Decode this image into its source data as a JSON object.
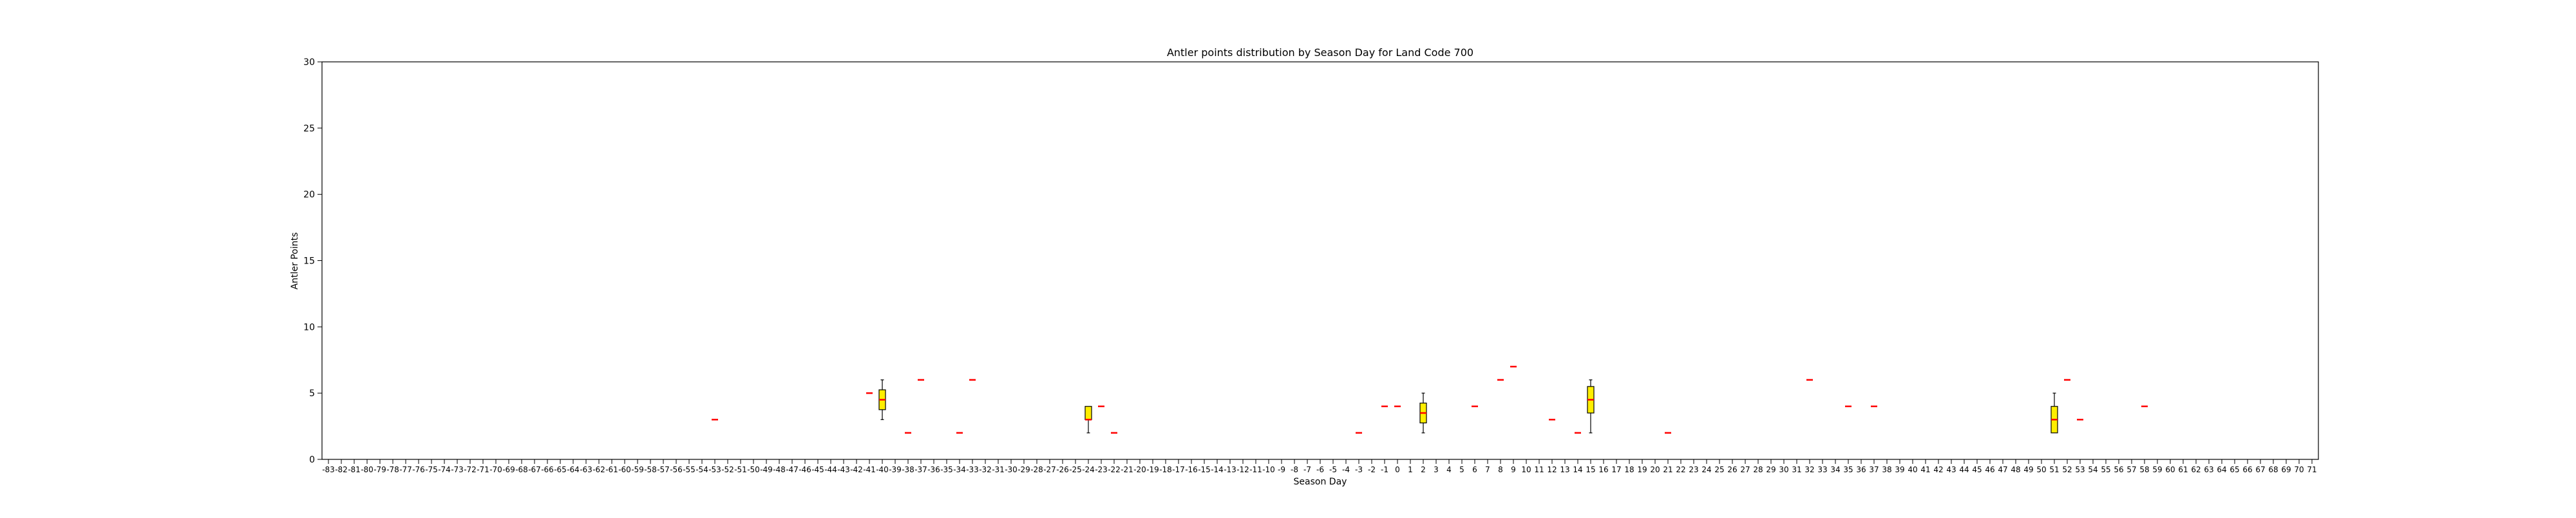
{
  "chart_data": {
    "type": "box",
    "title": "Antler points distribution by Season Day for Land Code 700",
    "xlabel": "Season Day",
    "ylabel": "Antler Points",
    "ylim": [
      0,
      30
    ],
    "yticks": [
      0,
      5,
      10,
      15,
      20,
      25,
      30
    ],
    "categories": [
      "-83",
      "-82",
      "-81",
      "-80",
      "-79",
      "-78",
      "-77",
      "-76",
      "-75",
      "-74",
      "-73",
      "-72",
      "-71",
      "-70",
      "-69",
      "-68",
      "-67",
      "-66",
      "-65",
      "-64",
      "-63",
      "-62",
      "-61",
      "-60",
      "-59",
      "-58",
      "-57",
      "-56",
      "-55",
      "-54",
      "-53",
      "-52",
      "-51",
      "-50",
      "-49",
      "-48",
      "-47",
      "-46",
      "-45",
      "-44",
      "-43",
      "-42",
      "-41",
      "-40",
      "-39",
      "-38",
      "-37",
      "-36",
      "-35",
      "-34",
      "-33",
      "-32",
      "-31",
      "-30",
      "-29",
      "-28",
      "-27",
      "-26",
      "-25",
      "-24",
      "-23",
      "-22",
      "-21",
      "-20",
      "-19",
      "-18",
      "-17",
      "-16",
      "-15",
      "-14",
      "-13",
      "-12",
      "-11",
      "-10",
      "-9",
      "-8",
      "-7",
      "-6",
      "-5",
      "-4",
      "-3",
      "-2",
      "-1",
      "0",
      "1",
      "2",
      "3",
      "4",
      "5",
      "6",
      "7",
      "8",
      "9",
      "10",
      "11",
      "12",
      "13",
      "14",
      "15",
      "16",
      "17",
      "18",
      "19",
      "20",
      "21",
      "22",
      "23",
      "24",
      "25",
      "26",
      "27",
      "28",
      "29",
      "30",
      "31",
      "32",
      "33",
      "34",
      "35",
      "36",
      "37",
      "38",
      "39",
      "40",
      "41",
      "42",
      "43",
      "44",
      "45",
      "46",
      "47",
      "48",
      "49",
      "50",
      "51",
      "52",
      "53",
      "54",
      "55",
      "56",
      "57",
      "58",
      "59",
      "60",
      "61",
      "62",
      "63",
      "64",
      "65",
      "66",
      "67",
      "68",
      "69",
      "70",
      "71"
    ],
    "boxes": [
      {
        "day": "-53",
        "min": 3,
        "q1": 3,
        "median": 3,
        "q3": 3,
        "max": 3
      },
      {
        "day": "-41",
        "min": 5,
        "q1": 5,
        "median": 5,
        "q3": 5,
        "max": 5
      },
      {
        "day": "-40",
        "min": 3,
        "q1": 3.75,
        "median": 4.5,
        "q3": 5.25,
        "max": 6
      },
      {
        "day": "-38",
        "min": 2,
        "q1": 2,
        "median": 2,
        "q3": 2,
        "max": 2
      },
      {
        "day": "-37",
        "min": 6,
        "q1": 6,
        "median": 6,
        "q3": 6,
        "max": 6
      },
      {
        "day": "-34",
        "min": 2,
        "q1": 2,
        "median": 2,
        "q3": 2,
        "max": 2
      },
      {
        "day": "-33",
        "min": 6,
        "q1": 6,
        "median": 6,
        "q3": 6,
        "max": 6
      },
      {
        "day": "-24",
        "min": 2,
        "q1": 3,
        "median": 3,
        "q3": 4,
        "max": 4
      },
      {
        "day": "-23",
        "min": 4,
        "q1": 4,
        "median": 4,
        "q3": 4,
        "max": 4
      },
      {
        "day": "-22",
        "min": 2,
        "q1": 2,
        "median": 2,
        "q3": 2,
        "max": 2
      },
      {
        "day": "-3",
        "min": 2,
        "q1": 2,
        "median": 2,
        "q3": 2,
        "max": 2
      },
      {
        "day": "-1",
        "min": 4,
        "q1": 4,
        "median": 4,
        "q3": 4,
        "max": 4
      },
      {
        "day": "0",
        "min": 4,
        "q1": 4,
        "median": 4,
        "q3": 4,
        "max": 4
      },
      {
        "day": "2",
        "min": 2,
        "q1": 2.75,
        "median": 3.5,
        "q3": 4.25,
        "max": 5
      },
      {
        "day": "6",
        "min": 4,
        "q1": 4,
        "median": 4,
        "q3": 4,
        "max": 4
      },
      {
        "day": "8",
        "min": 6,
        "q1": 6,
        "median": 6,
        "q3": 6,
        "max": 6
      },
      {
        "day": "9",
        "min": 7,
        "q1": 7,
        "median": 7,
        "q3": 7,
        "max": 7
      },
      {
        "day": "12",
        "min": 3,
        "q1": 3,
        "median": 3,
        "q3": 3,
        "max": 3
      },
      {
        "day": "14",
        "min": 2,
        "q1": 2,
        "median": 2,
        "q3": 2,
        "max": 2
      },
      {
        "day": "15",
        "min": 2,
        "q1": 3.5,
        "median": 4.5,
        "q3": 5.5,
        "max": 6
      },
      {
        "day": "21",
        "min": 2,
        "q1": 2,
        "median": 2,
        "q3": 2,
        "max": 2
      },
      {
        "day": "32",
        "min": 6,
        "q1": 6,
        "median": 6,
        "q3": 6,
        "max": 6
      },
      {
        "day": "35",
        "min": 4,
        "q1": 4,
        "median": 4,
        "q3": 4,
        "max": 4
      },
      {
        "day": "37",
        "min": 4,
        "q1": 4,
        "median": 4,
        "q3": 4,
        "max": 4
      },
      {
        "day": "51",
        "min": 2,
        "q1": 2,
        "median": 3,
        "q3": 4,
        "max": 5
      },
      {
        "day": "52",
        "min": 6,
        "q1": 6,
        "median": 6,
        "q3": 6,
        "max": 6
      },
      {
        "day": "53",
        "min": 3,
        "q1": 3,
        "median": 3,
        "q3": 3,
        "max": 3
      },
      {
        "day": "58",
        "min": 4,
        "q1": 4,
        "median": 4,
        "q3": 4,
        "max": 4
      }
    ],
    "colors": {
      "box_fill": "#ffee00",
      "median": "#ff0000",
      "whisker": "#000000"
    },
    "grid": false,
    "legend": "none"
  }
}
